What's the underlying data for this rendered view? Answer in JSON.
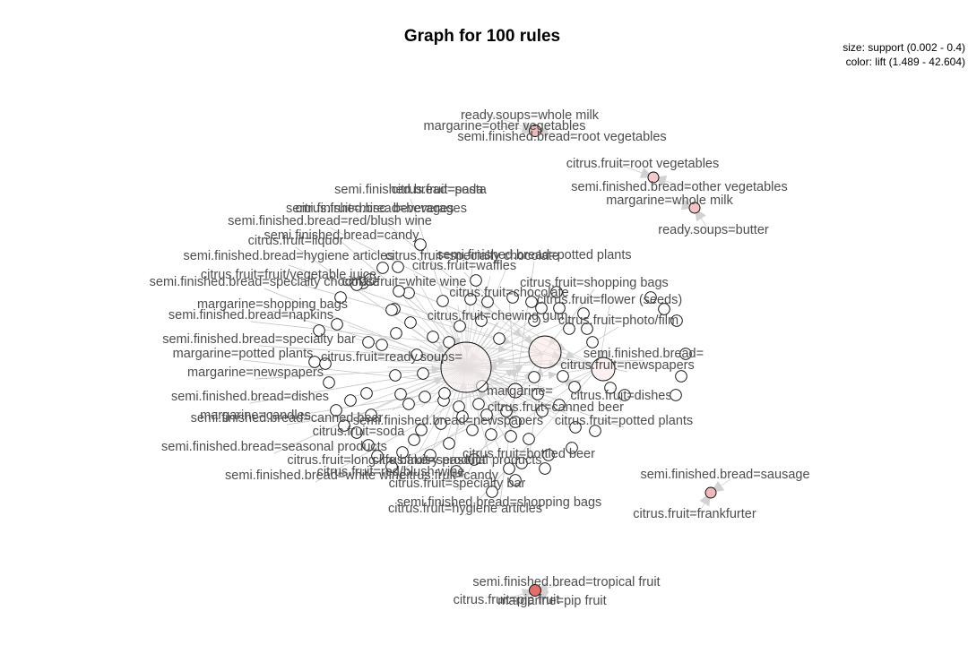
{
  "title": "Graph for 100 rules",
  "legend": {
    "size": "size: support (0.002 - 0.4)",
    "color": "color: lift (1.489 - 42.604)"
  },
  "colors": {
    "node_low": "#ffffff",
    "node_high": "#e06666",
    "edge": "#c8c8c8",
    "label": "#4d4d4d"
  },
  "labels": [
    "ready.soups=whole milk",
    "margarine=other vegetables",
    "semi.finished.bread=root vegetables",
    "citrus.fruit=root vegetables",
    "semi.finished.bread=other vegetables",
    "margarine=whole milk",
    "ready.soups=butter",
    "semi.finished.bread=pasta",
    "citrus.fruit=soda",
    "semi.finished.bread=beverages",
    "citrus.fruit=misc. beverages",
    "semi.finished.bread=red/blush wine",
    "semi.finished.bread=candy",
    "citrus.fruit=liquor",
    "semi.finished.bread=potted plants",
    "citrus.fruit=specialty chocolate",
    "citrus.fruit=waffles",
    "semi.finished.bread=hygiene articles",
    "citrus.fruit=fruit/vegetable juice",
    "semi.finished.bread=specialty chocolate",
    "citrus.fruit=white wine",
    "citrus.fruit=shopping bags",
    "citrus.fruit=chocolate",
    "citrus.fruit=flower (seeds)",
    "margarine=shopping bags",
    "semi.finished.bread=napkins",
    "citrus.fruit=chewing gum",
    "citrus.fruit=photo/film",
    "semi.finished.bread=specialty bar",
    "margarine=potted plants",
    "citrus.fruit=ready.soups=",
    "semi.finished.bread=",
    "citrus.fruit=newspapers",
    "margarine=newspapers",
    "margarine=",
    "semi.finished.bread=dishes",
    "citrus.fruit=dishes",
    "citrus.fruit=canned beer",
    "margarine=candles",
    "semi.finished.bread=canned beer",
    "semi.finished.bread=newspapers",
    "citrus.fruit=potted plants",
    "citrus.fruit=soda",
    "semi.finished.bread=seasonal products",
    "citrus.fruit=bottled beer",
    "citrus.fruit=long life bakery product",
    "citrus.fruit=seasonal products",
    "citrus.fruit=red/blush wine",
    "semi.finished.bread=white wine",
    "citrus.fruit=candy",
    "citrus.fruit=specialty bar",
    "semi.finished.bread=sausage",
    "semi.finished.bread=shopping bags",
    "citrus.fruit=hygiene articles",
    "citrus.fruit=frankfurter",
    "semi.finished.bread=tropical fruit",
    "citrus.fruit=pip fruit",
    "margarine=pip fruit"
  ]
}
